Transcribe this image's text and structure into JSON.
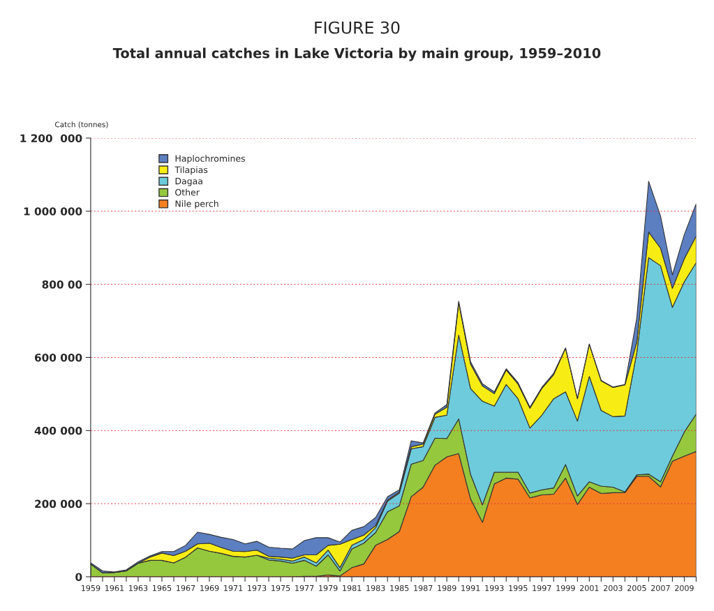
{
  "chart_data": {
    "type": "area",
    "title": "FIGURE 30",
    "subtitle": "Total annual catches in Lake Victoria by main group, 1959–2010",
    "ylabel": "Catch (tonnes)",
    "stacked": true,
    "x": [
      1959,
      1960,
      1961,
      1962,
      1963,
      1964,
      1965,
      1966,
      1967,
      1968,
      1969,
      1970,
      1971,
      1972,
      1973,
      1974,
      1975,
      1976,
      1977,
      1978,
      1979,
      1980,
      1981,
      1982,
      1983,
      1984,
      1985,
      1986,
      1987,
      1988,
      1989,
      1990,
      1991,
      1992,
      1993,
      1994,
      1995,
      1996,
      1997,
      1998,
      1999,
      2000,
      2001,
      2002,
      2003,
      2004,
      2005,
      2006,
      2007,
      2008,
      2009,
      2010
    ],
    "series": [
      {
        "name": "Nile perch",
        "color": "#f47f20",
        "values": [
          0,
          0,
          0,
          0,
          0,
          0,
          0,
          0,
          0,
          0,
          0,
          0,
          0,
          0,
          0,
          0,
          0,
          0,
          1000,
          1000,
          5000,
          2000,
          25000,
          35000,
          86000,
          102000,
          124000,
          219000,
          245000,
          305000,
          328000,
          337000,
          213000,
          149000,
          254000,
          270000,
          267000,
          216000,
          224000,
          226000,
          270000,
          198000,
          245000,
          228000,
          230000,
          230000,
          275000,
          275000,
          246000,
          316000,
          330000,
          343000
        ]
      },
      {
        "name": "Other",
        "color": "#95c83d",
        "values": [
          35000,
          11000,
          12000,
          16000,
          37000,
          45000,
          45000,
          38000,
          54000,
          79000,
          70000,
          64000,
          56000,
          54000,
          59000,
          46000,
          43000,
          37000,
          44000,
          28000,
          55000,
          14000,
          51000,
          57000,
          35000,
          76000,
          70000,
          89000,
          73000,
          74000,
          50000,
          95000,
          67000,
          48000,
          32000,
          16000,
          19000,
          13000,
          14000,
          17000,
          37000,
          23000,
          15000,
          20000,
          15000,
          2000,
          4000,
          6000,
          14000,
          14000,
          66000,
          102000
        ]
      },
      {
        "name": "Dagaa",
        "color": "#6dcbdb",
        "values": [
          0,
          0,
          0,
          0,
          0,
          0,
          0,
          0,
          0,
          0,
          0,
          0,
          0,
          0,
          0,
          5000,
          5000,
          6000,
          9000,
          9000,
          13000,
          9000,
          10000,
          10000,
          13000,
          29000,
          35000,
          42000,
          38000,
          57000,
          64000,
          229000,
          235000,
          283000,
          181000,
          240000,
          201000,
          178000,
          204000,
          244000,
          199000,
          205000,
          288000,
          207000,
          193000,
          208000,
          334000,
          592000,
          591000,
          407000,
          411000,
          414000
        ]
      },
      {
        "name": "Tilapias",
        "color": "#f7ec13",
        "values": [
          0,
          0,
          0,
          0,
          0,
          9000,
          20000,
          20000,
          16000,
          11000,
          22000,
          16000,
          14000,
          15000,
          14000,
          5000,
          6000,
          8000,
          6000,
          22000,
          13000,
          64000,
          16000,
          12000,
          6000,
          3000,
          3000,
          6000,
          7000,
          9000,
          22000,
          89000,
          67000,
          42000,
          34000,
          40000,
          40000,
          54000,
          73000,
          66000,
          119000,
          61000,
          88000,
          81000,
          80000,
          85000,
          29000,
          70000,
          48000,
          52000,
          63000,
          73000
        ]
      },
      {
        "name": "Haplochromines",
        "color": "#5b7fc1",
        "values": [
          3000,
          5000,
          1000,
          3000,
          4000,
          3000,
          4000,
          11000,
          16000,
          32000,
          24000,
          28000,
          32000,
          21000,
          24000,
          25000,
          24000,
          25000,
          39000,
          47000,
          21000,
          6000,
          25000,
          23000,
          22000,
          9000,
          6000,
          16000,
          3000,
          3000,
          7000,
          4000,
          6000,
          6000,
          5000,
          3000,
          4000,
          3000,
          3000,
          4000,
          1000,
          1000,
          1000,
          1000,
          1000,
          1000,
          66000,
          139000,
          88000,
          37000,
          66000,
          88000
        ]
      }
    ],
    "xlim": [
      1959,
      2010
    ],
    "xticks": [
      1959,
      {
        "value": 1960,
        "label": null
      },
      1961,
      {
        "value": 1962,
        "label": null
      },
      1963,
      {
        "value": 1964,
        "label": null
      },
      1965,
      {
        "value": 1966,
        "label": null
      },
      1967,
      {
        "value": 1968,
        "label": null
      },
      1969,
      {
        "value": 1970,
        "label": null
      },
      1971,
      {
        "value": 1972,
        "label": null
      },
      1973,
      {
        "value": 1974,
        "label": null
      },
      1975,
      {
        "value": 1976,
        "label": null
      },
      1977,
      {
        "value": 1978,
        "label": null
      },
      1979,
      {
        "value": 1980,
        "label": null
      },
      1981,
      {
        "value": 1982,
        "label": null
      },
      1983,
      {
        "value": 1984,
        "label": null
      },
      1985,
      {
        "value": 1986,
        "label": null
      },
      1987,
      {
        "value": 1988,
        "label": null
      },
      1989,
      {
        "value": 1990,
        "label": null
      },
      1991,
      {
        "value": 1992,
        "label": null
      },
      1993,
      {
        "value": 1994,
        "label": null
      },
      1995,
      {
        "value": 1996,
        "label": null
      },
      1997,
      {
        "value": 1998,
        "label": null
      },
      1999,
      {
        "value": 2000,
        "label": null
      },
      2001,
      {
        "value": 2002,
        "label": null
      },
      2003,
      {
        "value": 2004,
        "label": null
      },
      2005,
      {
        "value": 2006,
        "label": null
      },
      2007,
      {
        "value": 2008,
        "label": null
      },
      2009,
      {
        "value": 2010,
        "label": null
      }
    ],
    "ylim": [
      0,
      1200000
    ],
    "yticks": [
      0,
      {
        "value": 200000,
        "label": "200 000"
      },
      {
        "value": 400000,
        "label": "400 000"
      },
      {
        "value": 600000,
        "label": "600 000"
      },
      {
        "value": 800000,
        "label": "800 00"
      },
      {
        "value": 1000000,
        "label": "1 000 000"
      },
      {
        "value": 1200000,
        "label": "1 200  000"
      }
    ],
    "grid": "y",
    "legend": "top left"
  }
}
